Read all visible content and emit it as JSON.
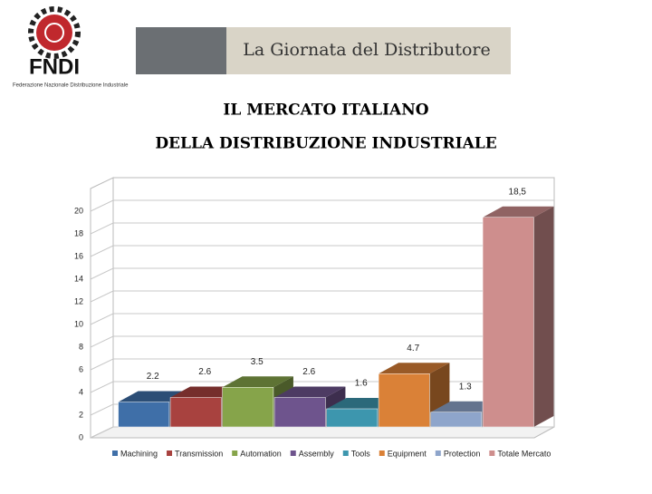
{
  "header": {
    "logo": "FNDI",
    "logo_subtitle": "Federazione Nazionale Distribuzione Industriale",
    "banner": "La Giornata del Distributore"
  },
  "chart_data": {
    "type": "bar3d",
    "title": "IL MERCATO ITALIANO",
    "subtitle": "DELLA DISTRIBUZIONE INDUSTRIALE",
    "categories": [
      "Machining",
      "Transmission",
      "Automation",
      "Assembly",
      "Tools",
      "Equipment",
      "Protection",
      "Totale Mercato"
    ],
    "values": [
      2.2,
      2.6,
      3.5,
      2.6,
      1.6,
      4.7,
      1.3,
      18.5
    ],
    "value_labels": [
      "2.2",
      "2.6",
      "3.5",
      "2.6",
      "1.6",
      "4.7",
      "1.3",
      "18,5"
    ],
    "colors": [
      "#3f6fa8",
      "#a8423f",
      "#86a44a",
      "#6e548d",
      "#3d96ae",
      "#da8137",
      "#8ea5cb",
      "#ce8e8d"
    ],
    "ylim": [
      0,
      20
    ],
    "yticks": [
      0,
      2,
      4,
      6,
      8,
      10,
      12,
      14,
      16,
      18,
      20
    ],
    "grid": true,
    "legend": "bottom"
  }
}
